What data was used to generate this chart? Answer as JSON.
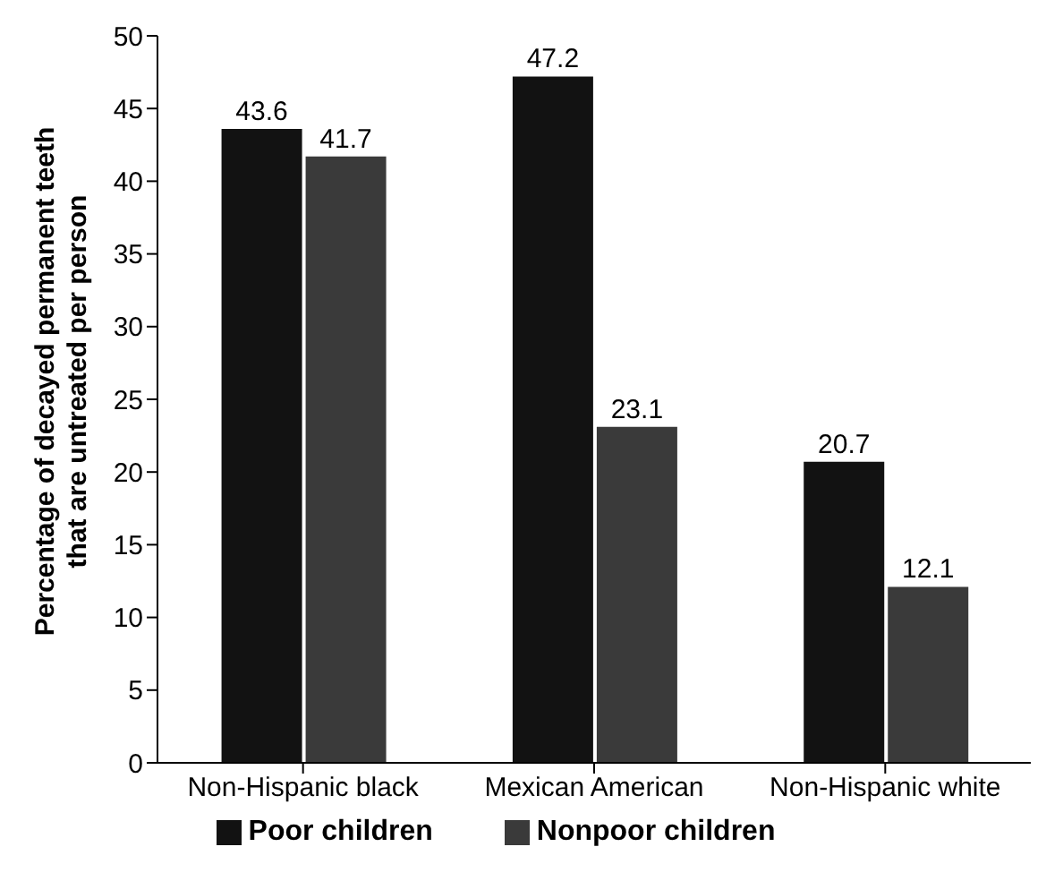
{
  "chart_data": {
    "type": "bar",
    "ylabel": "Percentage of decayed permanent teeth that are untreated per person",
    "categories": [
      "Non-Hispanic black",
      "Mexican American",
      "Non-Hispanic white"
    ],
    "series": [
      {
        "name": "Poor children",
        "color": "#121212",
        "values": [
          43.6,
          47.2,
          20.7
        ]
      },
      {
        "name": "Nonpoor children",
        "color": "#3a3a3a",
        "values": [
          41.7,
          23.1,
          12.1
        ]
      }
    ],
    "ylim": [
      0,
      50
    ],
    "yticks": [
      0,
      5,
      10,
      15,
      20,
      25,
      30,
      35,
      40,
      45,
      50
    ],
    "grid": false,
    "legend": "bottom",
    "data_labels": true
  }
}
